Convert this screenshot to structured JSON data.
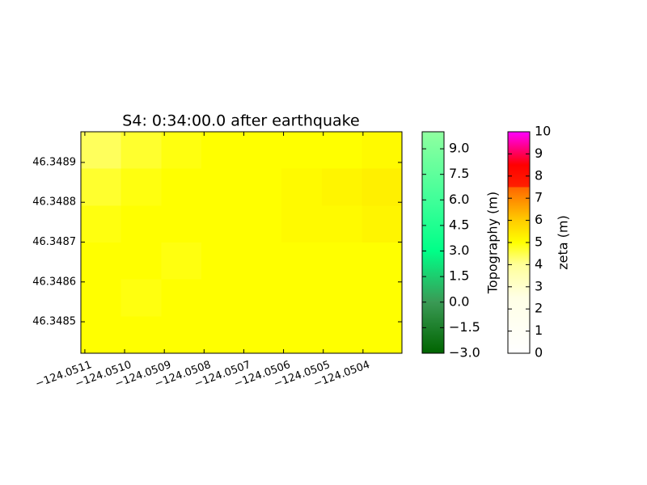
{
  "chart_data": {
    "type": "heatmap",
    "title": "S4: 0:34:00.0 after earthquake",
    "xlim": [
      -124.05111,
      -124.050302
    ],
    "ylim": [
      46.348421,
      46.348977
    ],
    "xticks": [
      {
        "value": -124.0511,
        "label": "−124.0511"
      },
      {
        "value": -124.051,
        "label": "−124.0510"
      },
      {
        "value": -124.0509,
        "label": "−124.0509"
      },
      {
        "value": -124.0508,
        "label": "−124.0508"
      },
      {
        "value": -124.0507,
        "label": "−124.0507"
      },
      {
        "value": -124.0506,
        "label": "−124.0506"
      },
      {
        "value": -124.0505,
        "label": "−124.0505"
      },
      {
        "value": -124.0504,
        "label": "−124.0504"
      }
    ],
    "yticks": [
      46.3485,
      46.3486,
      46.3487,
      46.3488,
      46.3489
    ],
    "z": [
      [
        4.4,
        4.7,
        4.9,
        5.0,
        5.0,
        5.0,
        5.0,
        5.1
      ],
      [
        4.7,
        4.9,
        5.0,
        5.0,
        5.0,
        5.1,
        5.2,
        5.3
      ],
      [
        4.9,
        5.0,
        5.0,
        5.0,
        5.0,
        5.1,
        5.1,
        5.2
      ],
      [
        5.0,
        5.0,
        4.9,
        5.0,
        5.0,
        5.0,
        5.0,
        5.0
      ],
      [
        5.0,
        4.9,
        5.0,
        5.0,
        5.0,
        5.0,
        5.0,
        5.0
      ],
      [
        5.0,
        5.0,
        5.0,
        5.0,
        5.0,
        5.0,
        5.0,
        5.0
      ]
    ],
    "colorbars": [
      {
        "label": "Topography (m)",
        "lim": [
          -3,
          10
        ],
        "ticks": [
          {
            "value": -3,
            "label": "−3.0"
          },
          {
            "value": -1.5,
            "label": "−1.5"
          },
          {
            "value": 0,
            "label": "0.0"
          },
          {
            "value": 1.5,
            "label": "1.5"
          },
          {
            "value": 3,
            "label": "3.0"
          },
          {
            "value": 4.5,
            "label": "4.5"
          },
          {
            "value": 6,
            "label": "6.0"
          },
          {
            "value": 7.5,
            "label": "7.5"
          },
          {
            "value": 9,
            "label": "9.0"
          }
        ],
        "colormap": [
          {
            "value": -3,
            "color": "#006400"
          },
          {
            "value": 0,
            "color": "#3a9a55"
          },
          {
            "value": 3,
            "color": "#00ff88"
          },
          {
            "value": 6,
            "color": "#40ff99"
          },
          {
            "value": 10,
            "color": "#90ffa0"
          }
        ]
      },
      {
        "label": "zeta (m)",
        "lim": [
          0,
          10
        ],
        "ticks": [
          0,
          1,
          2,
          3,
          4,
          5,
          6,
          7,
          8,
          9,
          10
        ],
        "colormap": [
          {
            "value": 0,
            "color": "#ffffff"
          },
          {
            "value": 2.5,
            "color": "#ffffe6"
          },
          {
            "value": 4,
            "color": "#ffff99"
          },
          {
            "value": 5,
            "color": "#ffff00"
          },
          {
            "value": 6,
            "color": "#ffcc00"
          },
          {
            "value": 7.5,
            "color": "#ff6600"
          },
          {
            "value": 7.5,
            "color": "#ff2000"
          },
          {
            "value": 8.5,
            "color": "#ff0000"
          },
          {
            "value": 10,
            "color": "#ff00ff"
          }
        ]
      }
    ]
  }
}
